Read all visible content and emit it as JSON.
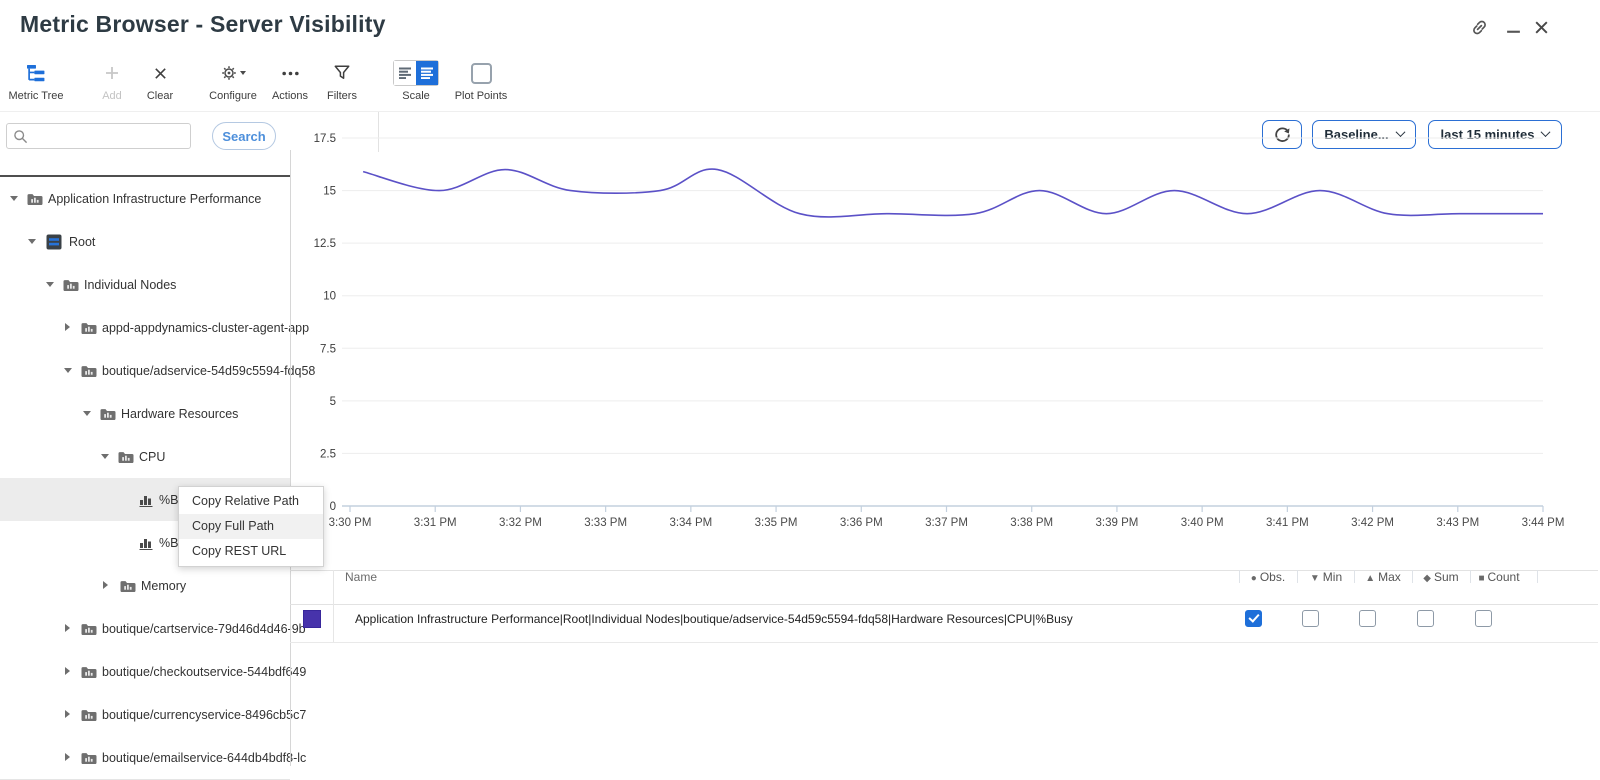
{
  "window": {
    "title": "Metric Browser - Server Visibility",
    "controls": {
      "link": "link",
      "minimize": "minimize",
      "close": "close"
    }
  },
  "toolbar": {
    "metric_tree": "Metric Tree",
    "add": "Add",
    "clear": "Clear",
    "configure": "Configure",
    "actions": "Actions",
    "filters": "Filters",
    "scale": "Scale",
    "plot_points": "Plot Points",
    "baseline": "Baseline...",
    "time_range": "last 15 minutes"
  },
  "search": {
    "placeholder": "",
    "button": "Search"
  },
  "tree": {
    "rows": [
      {
        "label": "Application Infrastructure Performance",
        "level": 0,
        "caret": "down",
        "icon": "folder"
      },
      {
        "label": "Root",
        "level": 1,
        "caret": "down",
        "icon": "server"
      },
      {
        "label": "Individual Nodes",
        "level": 2,
        "caret": "down",
        "icon": "folder"
      },
      {
        "label": "appd-appdynamics-cluster-agent-app",
        "level": 3,
        "caret": "right",
        "icon": "folder"
      },
      {
        "label": "boutique/adservice-54d59c5594-fdq58",
        "level": 3,
        "caret": "down",
        "icon": "folder"
      },
      {
        "label": "Hardware Resources",
        "level": 4,
        "caret": "down",
        "icon": "folder"
      },
      {
        "label": "CPU",
        "level": 5,
        "caret": "down",
        "icon": "folder"
      },
      {
        "label": "%Busy",
        "level": 6,
        "caret": "none",
        "icon": "metric",
        "selected": true
      },
      {
        "label": "%Busy",
        "level": 6,
        "caret": "none",
        "icon": "metric"
      },
      {
        "label": "Memory",
        "level": 5,
        "caret": "right",
        "icon": "folder"
      },
      {
        "label": "boutique/cartservice-79d46d4d46-9b",
        "level": 3,
        "caret": "right",
        "icon": "folder"
      },
      {
        "label": "boutique/checkoutservice-544bdf649",
        "level": 3,
        "caret": "right",
        "icon": "folder"
      },
      {
        "label": "boutique/currencyservice-8496cb5c7",
        "level": 3,
        "caret": "right",
        "icon": "folder"
      },
      {
        "label": "boutique/emailservice-644db4bdf8-lc",
        "level": 3,
        "caret": "right",
        "icon": "folder"
      }
    ]
  },
  "context_menu": {
    "items": [
      "Copy Relative Path",
      "Copy Full Path",
      "Copy REST URL"
    ]
  },
  "chart_data": {
    "type": "line",
    "title": "",
    "xlabel": "",
    "ylabel": "",
    "grid": true,
    "legend_position": "none",
    "ylim": [
      0,
      17.5
    ],
    "y_ticks": [
      0,
      2.5,
      5,
      7.5,
      10,
      12.5,
      15,
      17.5
    ],
    "x_labels": [
      "3:30 PM",
      "3:31 PM",
      "3:32 PM",
      "3:33 PM",
      "3:34 PM",
      "3:35 PM",
      "3:36 PM",
      "3:37 PM",
      "3:38 PM",
      "3:39 PM",
      "3:40 PM",
      "3:41 PM",
      "3:42 PM",
      "3:43 PM",
      "3:44 PM"
    ],
    "series": [
      {
        "name": "Application Infrastructure Performance|Root|Individual Nodes|boutique/adservice-54d59c5594-fdq58|Hardware Resources|CPU|%Busy",
        "color": "#5b51c7",
        "points": [
          [
            0.011,
            15.9
          ],
          [
            0.075,
            15.0
          ],
          [
            0.13,
            16.0
          ],
          [
            0.185,
            15.0
          ],
          [
            0.26,
            15.0
          ],
          [
            0.308,
            16.0
          ],
          [
            0.377,
            13.9
          ],
          [
            0.45,
            13.9
          ],
          [
            0.524,
            13.9
          ],
          [
            0.578,
            15.0
          ],
          [
            0.634,
            13.9
          ],
          [
            0.691,
            15.0
          ],
          [
            0.752,
            13.9
          ],
          [
            0.813,
            15.0
          ],
          [
            0.87,
            13.9
          ],
          [
            0.93,
            13.9
          ],
          [
            1.0,
            13.9
          ]
        ]
      }
    ]
  },
  "table": {
    "name_header": "Name",
    "columns": [
      {
        "glyph": "●",
        "label": "Obs."
      },
      {
        "glyph": "▼",
        "label": "Min"
      },
      {
        "glyph": "▲",
        "label": "Max"
      },
      {
        "glyph": "◆",
        "label": "Sum"
      },
      {
        "glyph": "■",
        "label": "Count"
      }
    ],
    "row": {
      "name": "Application Infrastructure Performance|Root|Individual Nodes|boutique/adservice-54d59c5594-fdq58|Hardware Resources|CPU|%Busy",
      "swatch_color": "#4733ab",
      "checks": {
        "obs": true,
        "min": false,
        "max": false,
        "sum": false,
        "count": false
      }
    }
  }
}
